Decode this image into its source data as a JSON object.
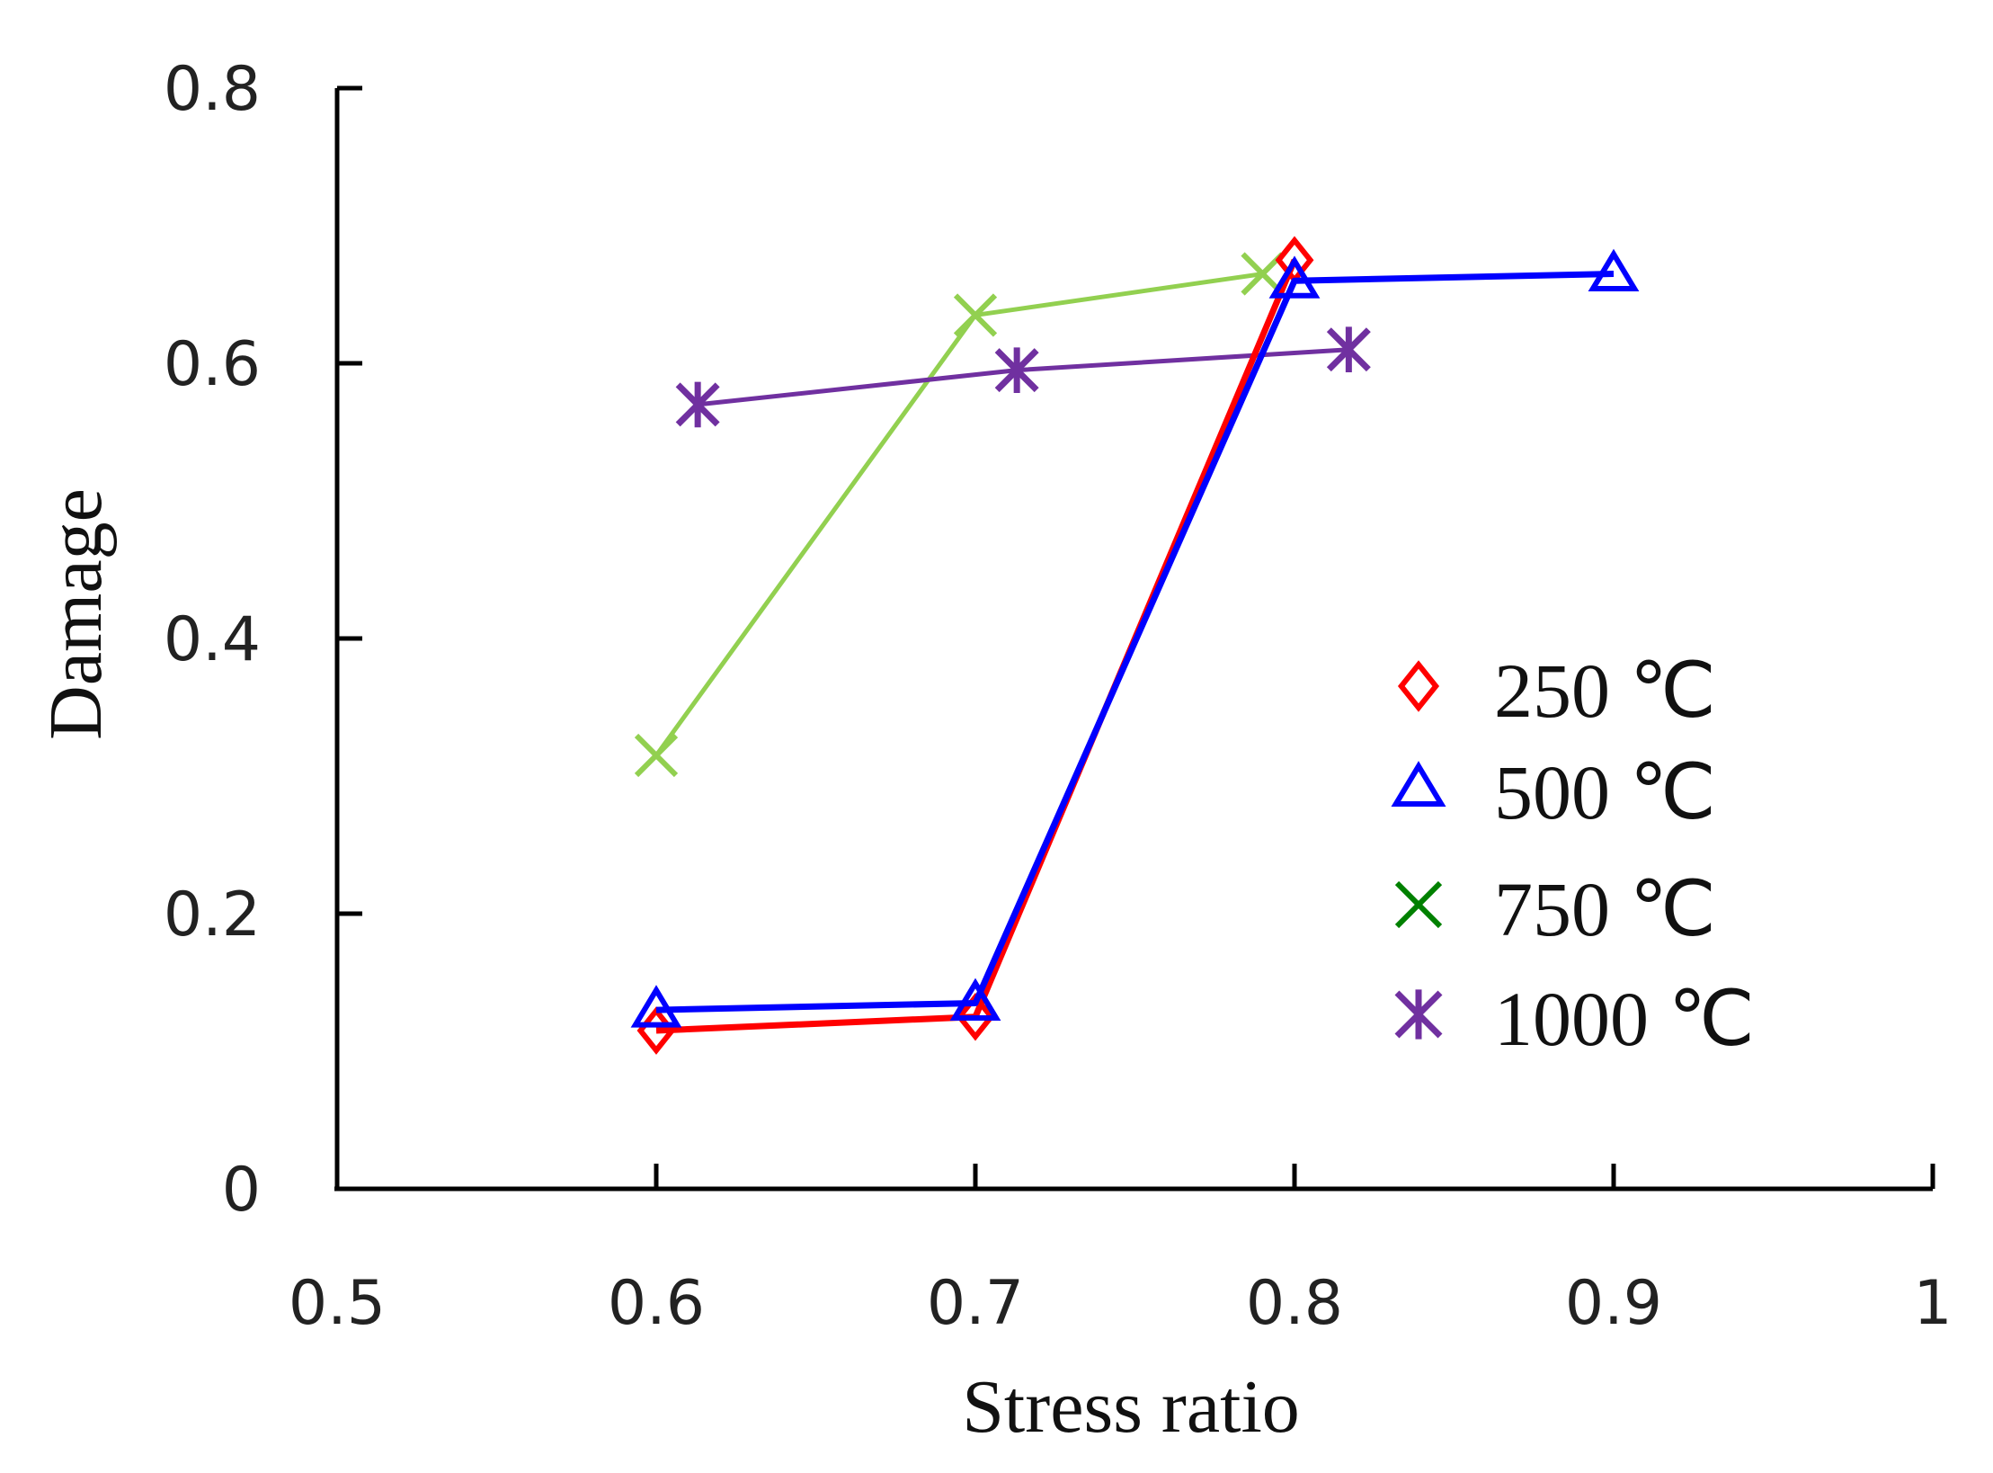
{
  "chart_data": {
    "type": "line",
    "title": "",
    "xlabel": "Stress ratio",
    "ylabel": "Damage",
    "xlim": [
      0.5,
      1.0
    ],
    "ylim": [
      0,
      0.8
    ],
    "xticks": [
      0.5,
      0.6,
      0.7,
      0.8,
      0.9,
      1.0
    ],
    "yticks": [
      0,
      0.2,
      0.4,
      0.6,
      0.8
    ],
    "xtick_labels": [
      "0.5",
      "0.6",
      "0.7",
      "0.8",
      "0.9",
      "1"
    ],
    "ytick_labels": [
      "0",
      "0.2",
      "0.4",
      "0.6",
      "0.8"
    ],
    "grid": false,
    "legend_position": "right",
    "series": [
      {
        "name": "250 ℃",
        "marker": "diamond",
        "line_color": "#ff0000",
        "marker_color": "#ff0000",
        "legend_color": "#ff0000",
        "x": [
          0.6,
          0.7,
          0.8
        ],
        "y": [
          0.115,
          0.125,
          0.675
        ]
      },
      {
        "name": "500 ℃",
        "marker": "triangle",
        "line_color": "#0000ff",
        "marker_color": "#0000ff",
        "legend_color": "#0000ff",
        "x": [
          0.6,
          0.7,
          0.8,
          0.9
        ],
        "y": [
          0.13,
          0.135,
          0.66,
          0.665
        ]
      },
      {
        "name": "750 ℃",
        "marker": "x",
        "line_color": "#92d050",
        "marker_color": "#92d050",
        "legend_color": "#008000",
        "x": [
          0.6,
          0.7,
          0.79
        ],
        "y": [
          0.315,
          0.635,
          0.665
        ]
      },
      {
        "name": "1000 ℃",
        "marker": "star",
        "line_color": "#7030a0",
        "marker_color": "#7030a0",
        "legend_color": "#7030a0",
        "x": [
          0.613,
          0.713,
          0.817
        ],
        "y": [
          0.57,
          0.595,
          0.61
        ]
      }
    ]
  }
}
